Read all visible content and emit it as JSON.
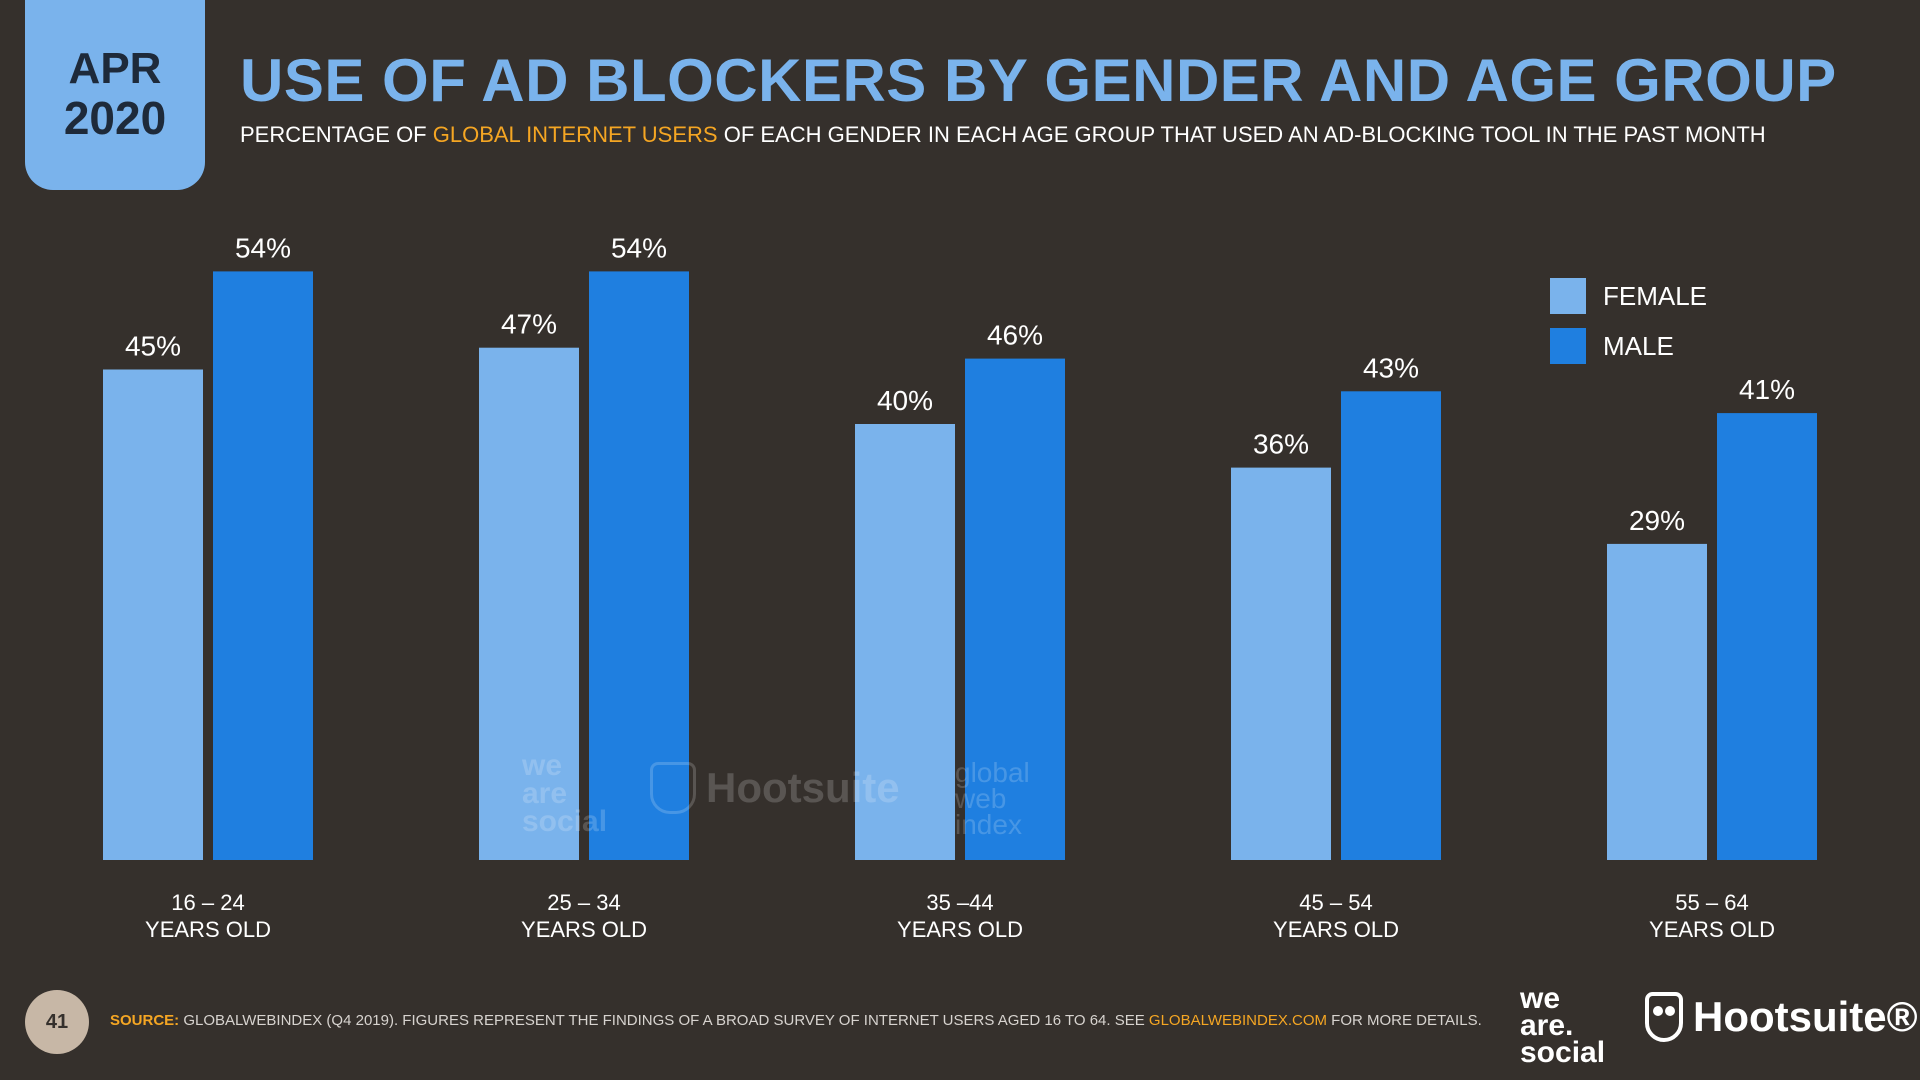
{
  "badge": {
    "month": "APR",
    "year": "2020"
  },
  "header": {
    "title": "USE OF AD BLOCKERS BY GENDER AND AGE GROUP",
    "subtitle_pre": "PERCENTAGE OF ",
    "subtitle_highlight": "GLOBAL INTERNET USERS",
    "subtitle_post": " OF EACH GENDER IN EACH AGE GROUP THAT USED AN AD-BLOCKING TOOL IN THE PAST MONTH"
  },
  "colors": {
    "female": "#7ab3ec",
    "male": "#1f7fe0",
    "background": "#35302c",
    "accent": "#f5a623"
  },
  "chart_data": {
    "type": "bar",
    "categories": [
      "16 – 24",
      "25 – 34",
      "35 –44",
      "45 – 54",
      "55 – 64"
    ],
    "category_sublabel": "YEARS OLD",
    "series": [
      {
        "name": "FEMALE",
        "values": [
          45,
          47,
          40,
          36,
          29
        ],
        "labels": [
          "45%",
          "47%",
          "40%",
          "36%",
          "29%"
        ]
      },
      {
        "name": "MALE",
        "values": [
          54,
          54,
          46,
          43,
          41
        ],
        "labels": [
          "54%",
          "54%",
          "46%",
          "43%",
          "41%"
        ]
      }
    ],
    "unit": "%",
    "ylim": [
      0,
      60
    ],
    "grid": false,
    "legend": "top-right"
  },
  "watermarks": {
    "was": [
      "we",
      "are",
      "social"
    ],
    "hootsuite": "Hootsuite",
    "gwi": [
      "global",
      "web",
      "index"
    ]
  },
  "footer": {
    "page_number": "41",
    "source_label": "SOURCE:",
    "source_text": " GLOBALWEBINDEX (Q4 2019). FIGURES REPRESENT THE FINDINGS OF A BROAD SURVEY OF INTERNET USERS AGED 16 TO 64. SEE ",
    "source_link": "GLOBALWEBINDEX.COM",
    "source_end": " FOR MORE DETAILS."
  },
  "logos": {
    "was": [
      "we",
      "are.",
      "social"
    ],
    "hootsuite": "Hootsuite®"
  }
}
